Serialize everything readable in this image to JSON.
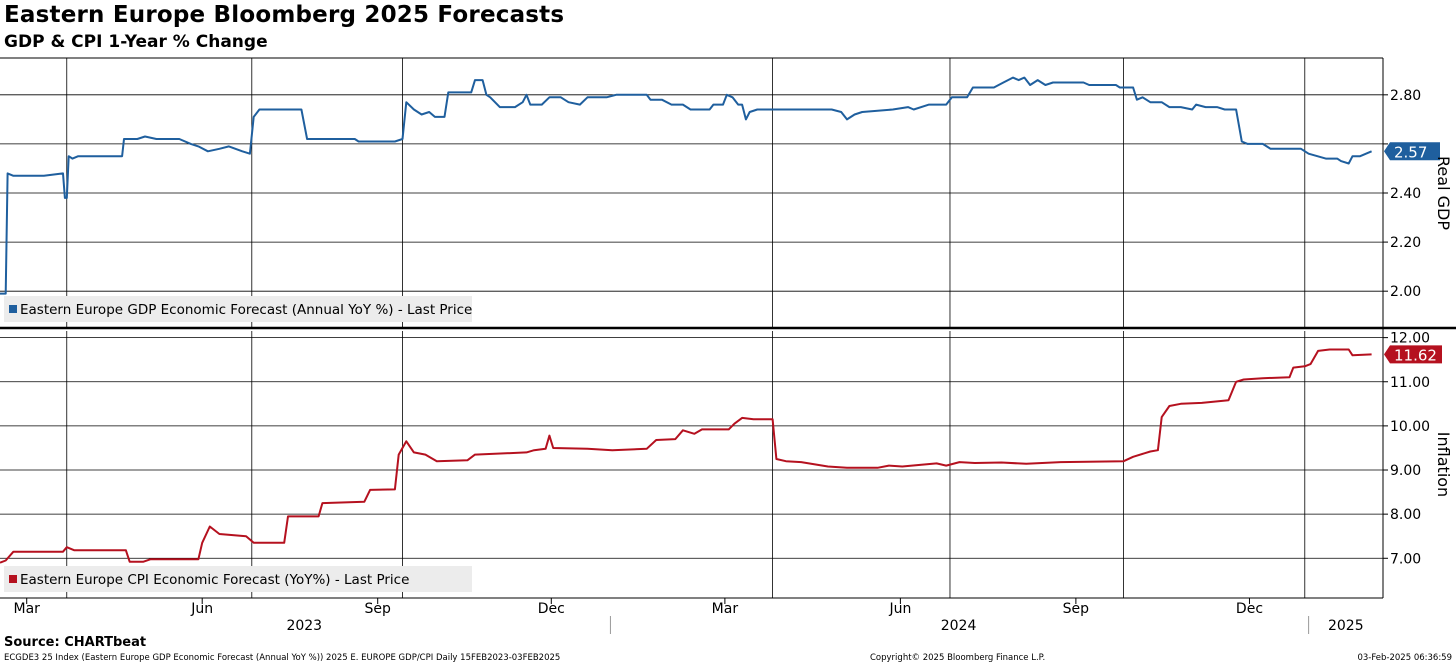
{
  "header": {
    "title": "Eastern Europe Bloomberg 2025 Forecasts",
    "subtitle": "GDP & CPI 1-Year % Change"
  },
  "footer": {
    "source": "Source: CHARTbeat",
    "ticker_line": "ECGDE3 25 Index (Eastern Europe GDP Economic Forecast (Annual YoY %)) 2025 E. EUROPE GDP/CPI  Daily 15FEB2023-03FEB2025",
    "copyright": "Copyright© 2025 Bloomberg Finance L.P.",
    "timestamp": "03-Feb-2025 06:36:59"
  },
  "colors": {
    "gdp": "#1f5f9e",
    "cpi": "#b5111f",
    "grid": "#000000"
  },
  "chart_data": [
    {
      "type": "line",
      "panel": "top",
      "ylabel": "Real GDP",
      "ylim": [
        1.85,
        2.95
      ],
      "yticks": [
        2.0,
        2.2,
        2.4,
        2.6,
        2.8
      ],
      "ytick_labels": [
        "2.00",
        "2.20",
        "2.40",
        "",
        "2.80"
      ],
      "last_value_label": "2.57",
      "legend": "Eastern Europe GDP Economic Forecast (Annual YoY %) - Last Price",
      "series": [
        {
          "name": "Eastern Europe GDP Economic Forecast (Annual YoY %) - Last Price",
          "color": "#1f5f9e",
          "points": [
            [
              "2023-02-15",
              1.99
            ],
            [
              "2023-02-18",
              1.99
            ],
            [
              "2023-02-19",
              2.48
            ],
            [
              "2023-02-22",
              2.47
            ],
            [
              "2023-03-10",
              2.47
            ],
            [
              "2023-03-20",
              2.48
            ],
            [
              "2023-03-21",
              2.38
            ],
            [
              "2023-03-22",
              2.38
            ],
            [
              "2023-03-23",
              2.55
            ],
            [
              "2023-03-25",
              2.54
            ],
            [
              "2023-03-28",
              2.55
            ],
            [
              "2023-04-20",
              2.55
            ],
            [
              "2023-04-21",
              2.62
            ],
            [
              "2023-04-28",
              2.62
            ],
            [
              "2023-05-02",
              2.63
            ],
            [
              "2023-05-08",
              2.62
            ],
            [
              "2023-05-20",
              2.62
            ],
            [
              "2023-05-26",
              2.6
            ],
            [
              "2023-05-30",
              2.59
            ],
            [
              "2023-06-04",
              2.57
            ],
            [
              "2023-06-10",
              2.58
            ],
            [
              "2023-06-15",
              2.59
            ],
            [
              "2023-06-22",
              2.57
            ],
            [
              "2023-06-26",
              2.56
            ],
            [
              "2023-06-28",
              2.71
            ],
            [
              "2023-07-01",
              2.74
            ],
            [
              "2023-07-23",
              2.74
            ],
            [
              "2023-07-26",
              2.62
            ],
            [
              "2023-08-20",
              2.62
            ],
            [
              "2023-08-22",
              2.61
            ],
            [
              "2023-09-10",
              2.61
            ],
            [
              "2023-09-14",
              2.62
            ],
            [
              "2023-09-16",
              2.77
            ],
            [
              "2023-09-20",
              2.74
            ],
            [
              "2023-09-24",
              2.72
            ],
            [
              "2023-09-28",
              2.73
            ],
            [
              "2023-10-01",
              2.71
            ],
            [
              "2023-10-06",
              2.71
            ],
            [
              "2023-10-08",
              2.81
            ],
            [
              "2023-10-20",
              2.81
            ],
            [
              "2023-10-22",
              2.86
            ],
            [
              "2023-10-26",
              2.86
            ],
            [
              "2023-10-28",
              2.8
            ],
            [
              "2023-10-30",
              2.79
            ],
            [
              "2023-11-04",
              2.75
            ],
            [
              "2023-11-12",
              2.75
            ],
            [
              "2023-11-16",
              2.77
            ],
            [
              "2023-11-18",
              2.8
            ],
            [
              "2023-11-20",
              2.76
            ],
            [
              "2023-11-26",
              2.76
            ],
            [
              "2023-11-30",
              2.79
            ],
            [
              "2023-12-06",
              2.79
            ],
            [
              "2023-12-10",
              2.77
            ],
            [
              "2023-12-16",
              2.76
            ],
            [
              "2023-12-20",
              2.79
            ],
            [
              "2023-12-30",
              2.79
            ],
            [
              "2024-01-04",
              2.8
            ],
            [
              "2024-01-20",
              2.8
            ],
            [
              "2024-01-22",
              2.78
            ],
            [
              "2024-01-28",
              2.78
            ],
            [
              "2024-02-02",
              2.76
            ],
            [
              "2024-02-08",
              2.76
            ],
            [
              "2024-02-12",
              2.74
            ],
            [
              "2024-02-22",
              2.74
            ],
            [
              "2024-02-24",
              2.76
            ],
            [
              "2024-02-29",
              2.76
            ],
            [
              "2024-03-02",
              2.8
            ],
            [
              "2024-03-05",
              2.79
            ],
            [
              "2024-03-08",
              2.76
            ],
            [
              "2024-03-10",
              2.76
            ],
            [
              "2024-03-12",
              2.7
            ],
            [
              "2024-03-14",
              2.73
            ],
            [
              "2024-03-18",
              2.74
            ],
            [
              "2024-03-30",
              2.74
            ],
            [
              "2024-04-10",
              2.74
            ],
            [
              "2024-04-26",
              2.74
            ],
            [
              "2024-05-01",
              2.73
            ],
            [
              "2024-05-04",
              2.7
            ],
            [
              "2024-05-08",
              2.72
            ],
            [
              "2024-05-12",
              2.73
            ],
            [
              "2024-05-28",
              2.74
            ],
            [
              "2024-06-05",
              2.75
            ],
            [
              "2024-06-08",
              2.74
            ],
            [
              "2024-06-16",
              2.76
            ],
            [
              "2024-06-25",
              2.76
            ],
            [
              "2024-06-28",
              2.79
            ],
            [
              "2024-07-06",
              2.79
            ],
            [
              "2024-07-09",
              2.83
            ],
            [
              "2024-07-20",
              2.83
            ],
            [
              "2024-07-25",
              2.85
            ],
            [
              "2024-07-30",
              2.87
            ],
            [
              "2024-08-02",
              2.86
            ],
            [
              "2024-08-05",
              2.87
            ],
            [
              "2024-08-08",
              2.84
            ],
            [
              "2024-08-12",
              2.86
            ],
            [
              "2024-08-16",
              2.84
            ],
            [
              "2024-08-20",
              2.85
            ],
            [
              "2024-09-05",
              2.85
            ],
            [
              "2024-09-08",
              2.84
            ],
            [
              "2024-09-22",
              2.84
            ],
            [
              "2024-09-24",
              2.83
            ],
            [
              "2024-10-01",
              2.83
            ],
            [
              "2024-10-03",
              2.78
            ],
            [
              "2024-10-06",
              2.79
            ],
            [
              "2024-10-10",
              2.77
            ],
            [
              "2024-10-16",
              2.77
            ],
            [
              "2024-10-20",
              2.75
            ],
            [
              "2024-10-26",
              2.75
            ],
            [
              "2024-11-01",
              2.74
            ],
            [
              "2024-11-03",
              2.76
            ],
            [
              "2024-11-08",
              2.75
            ],
            [
              "2024-11-14",
              2.75
            ],
            [
              "2024-11-18",
              2.74
            ],
            [
              "2024-11-24",
              2.74
            ],
            [
              "2024-11-27",
              2.61
            ],
            [
              "2024-11-30",
              2.6
            ],
            [
              "2024-12-08",
              2.6
            ],
            [
              "2024-12-12",
              2.58
            ],
            [
              "2024-12-28",
              2.58
            ],
            [
              "2025-01-01",
              2.56
            ],
            [
              "2025-01-10",
              2.54
            ],
            [
              "2025-01-16",
              2.54
            ],
            [
              "2025-01-18",
              2.53
            ],
            [
              "2025-01-22",
              2.52
            ],
            [
              "2025-01-24",
              2.55
            ],
            [
              "2025-01-28",
              2.55
            ],
            [
              "2025-02-03",
              2.57
            ]
          ]
        }
      ]
    },
    {
      "type": "line",
      "panel": "bottom",
      "ylabel": "Inflation",
      "ylim": [
        6.1,
        12.15
      ],
      "yticks": [
        7.0,
        8.0,
        9.0,
        10.0,
        11.0,
        12.0
      ],
      "ytick_labels": [
        "7.00",
        "8.00",
        "9.00",
        "10.00",
        "11.00",
        "12.00"
      ],
      "last_value_label": "11.62",
      "legend": "Eastern Europe CPI Economic Forecast (YoY%) - Last Price",
      "series": [
        {
          "name": "Eastern Europe CPI Economic Forecast (YoY%) - Last Price",
          "color": "#b5111f",
          "points": [
            [
              "2023-02-15",
              6.9
            ],
            [
              "2023-02-18",
              6.95
            ],
            [
              "2023-02-22",
              7.15
            ],
            [
              "2023-03-20",
              7.15
            ],
            [
              "2023-03-22",
              7.25
            ],
            [
              "2023-03-26",
              7.18
            ],
            [
              "2023-04-22",
              7.18
            ],
            [
              "2023-04-24",
              6.92
            ],
            [
              "2023-05-01",
              6.92
            ],
            [
              "2023-05-05",
              6.98
            ],
            [
              "2023-05-30",
              6.98
            ],
            [
              "2023-06-01",
              7.35
            ],
            [
              "2023-06-05",
              7.72
            ],
            [
              "2023-06-10",
              7.55
            ],
            [
              "2023-06-24",
              7.5
            ],
            [
              "2023-06-28",
              7.35
            ],
            [
              "2023-07-14",
              7.35
            ],
            [
              "2023-07-16",
              7.95
            ],
            [
              "2023-08-01",
              7.95
            ],
            [
              "2023-08-03",
              8.25
            ],
            [
              "2023-08-25",
              8.28
            ],
            [
              "2023-08-28",
              8.55
            ],
            [
              "2023-09-10",
              8.56
            ],
            [
              "2023-09-12",
              9.35
            ],
            [
              "2023-09-16",
              9.65
            ],
            [
              "2023-09-20",
              9.4
            ],
            [
              "2023-09-26",
              9.35
            ],
            [
              "2023-10-02",
              9.2
            ],
            [
              "2023-10-18",
              9.22
            ],
            [
              "2023-10-22",
              9.35
            ],
            [
              "2023-11-18",
              9.4
            ],
            [
              "2023-11-22",
              9.45
            ],
            [
              "2023-11-28",
              9.48
            ],
            [
              "2023-11-30",
              9.78
            ],
            [
              "2023-12-02",
              9.5
            ],
            [
              "2023-12-20",
              9.48
            ],
            [
              "2024-01-02",
              9.45
            ],
            [
              "2024-01-20",
              9.48
            ],
            [
              "2024-01-25",
              9.68
            ],
            [
              "2024-02-04",
              9.7
            ],
            [
              "2024-02-08",
              9.9
            ],
            [
              "2024-02-14",
              9.82
            ],
            [
              "2024-02-18",
              9.92
            ],
            [
              "2024-03-03",
              9.92
            ],
            [
              "2024-03-06",
              10.05
            ],
            [
              "2024-03-10",
              10.18
            ],
            [
              "2024-03-16",
              10.15
            ],
            [
              "2024-03-26",
              10.15
            ],
            [
              "2024-03-28",
              9.25
            ],
            [
              "2024-04-02",
              9.2
            ],
            [
              "2024-04-10",
              9.18
            ],
            [
              "2024-04-24",
              9.08
            ],
            [
              "2024-05-04",
              9.05
            ],
            [
              "2024-05-20",
              9.05
            ],
            [
              "2024-05-26",
              9.1
            ],
            [
              "2024-06-02",
              9.08
            ],
            [
              "2024-06-12",
              9.12
            ],
            [
              "2024-06-20",
              9.15
            ],
            [
              "2024-06-25",
              9.1
            ],
            [
              "2024-07-02",
              9.18
            ],
            [
              "2024-07-10",
              9.16
            ],
            [
              "2024-07-24",
              9.17
            ],
            [
              "2024-08-06",
              9.14
            ],
            [
              "2024-08-24",
              9.18
            ],
            [
              "2024-09-26",
              9.2
            ],
            [
              "2024-10-01",
              9.3
            ],
            [
              "2024-10-10",
              9.42
            ],
            [
              "2024-10-14",
              9.45
            ],
            [
              "2024-10-16",
              10.2
            ],
            [
              "2024-10-20",
              10.45
            ],
            [
              "2024-10-26",
              10.5
            ],
            [
              "2024-11-06",
              10.52
            ],
            [
              "2024-11-20",
              10.58
            ],
            [
              "2024-11-24",
              11.0
            ],
            [
              "2024-11-28",
              11.05
            ],
            [
              "2024-12-08",
              11.08
            ],
            [
              "2024-12-22",
              11.1
            ],
            [
              "2024-12-24",
              11.32
            ],
            [
              "2024-12-30",
              11.35
            ],
            [
              "2025-01-02",
              11.4
            ],
            [
              "2025-01-06",
              11.7
            ],
            [
              "2025-01-12",
              11.73
            ],
            [
              "2025-01-22",
              11.73
            ],
            [
              "2025-01-24",
              11.6
            ],
            [
              "2025-02-03",
              11.62
            ]
          ]
        }
      ]
    }
  ],
  "x_axis": {
    "range": [
      "2023-02-15",
      "2025-02-09"
    ],
    "month_ticks": [
      {
        "label": "Mar",
        "date": "2023-03-01"
      },
      {
        "label": "Jun",
        "date": "2023-06-01"
      },
      {
        "label": "Sep",
        "date": "2023-09-01"
      },
      {
        "label": "Dec",
        "date": "2023-12-01"
      },
      {
        "label": "Mar",
        "date": "2024-03-01"
      },
      {
        "label": "Jun",
        "date": "2024-06-01"
      },
      {
        "label": "Sep",
        "date": "2024-09-01"
      },
      {
        "label": "Dec",
        "date": "2024-12-01"
      }
    ],
    "gridlines": [
      "2023-03-22",
      "2023-06-27",
      "2023-09-14",
      "2024-03-26",
      "2024-06-27",
      "2024-09-26",
      "2024-12-30"
    ],
    "year_ticks": [
      {
        "label": "2023",
        "start": "2023-02-15",
        "end": "2023-12-31"
      },
      {
        "label": "2024",
        "start": "2024-01-01",
        "end": "2024-12-31"
      },
      {
        "label": "2025",
        "start": "2025-01-01",
        "end": "2025-02-09"
      }
    ]
  }
}
